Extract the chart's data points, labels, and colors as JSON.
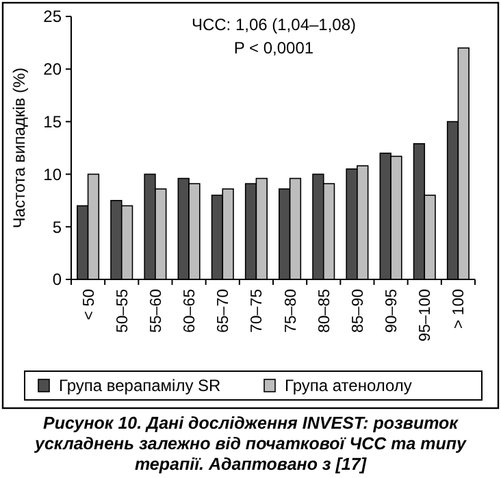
{
  "chart_data": {
    "type": "bar",
    "ylabel": "Частота випадків (%)",
    "categories": [
      "< 50",
      "50–55",
      "55–60",
      "60–65",
      "65–70",
      "70–75",
      "75–80",
      "80–85",
      "85–90",
      "90–95",
      "95–100",
      "> 100"
    ],
    "series": [
      {
        "name": "Група верапамілу SR",
        "color": "#4d4d4d",
        "values": [
          7,
          7.5,
          10,
          9.6,
          8,
          9.1,
          8.6,
          10,
          10.5,
          12,
          12.9,
          15
        ]
      },
      {
        "name": "Група атенололу",
        "color": "#bdbdbd",
        "values": [
          10,
          7,
          8.6,
          9.1,
          8.6,
          9.6,
          9.6,
          9.1,
          10.8,
          11.7,
          8,
          22
        ]
      }
    ],
    "ylim": [
      0,
      25
    ],
    "yticks": [
      0,
      5,
      10,
      15,
      20,
      25
    ],
    "grid": false,
    "legend": "bottom",
    "annotations": [
      "ЧСС: 1,06 (1,04–1,08)",
      "P < 0,0001",
      "Рисунок 10. Дані дослідження INVEST: розвиток ускладнень залежно від початкової ЧСС та типу терапії. Адаптовано з [17]"
    ]
  }
}
